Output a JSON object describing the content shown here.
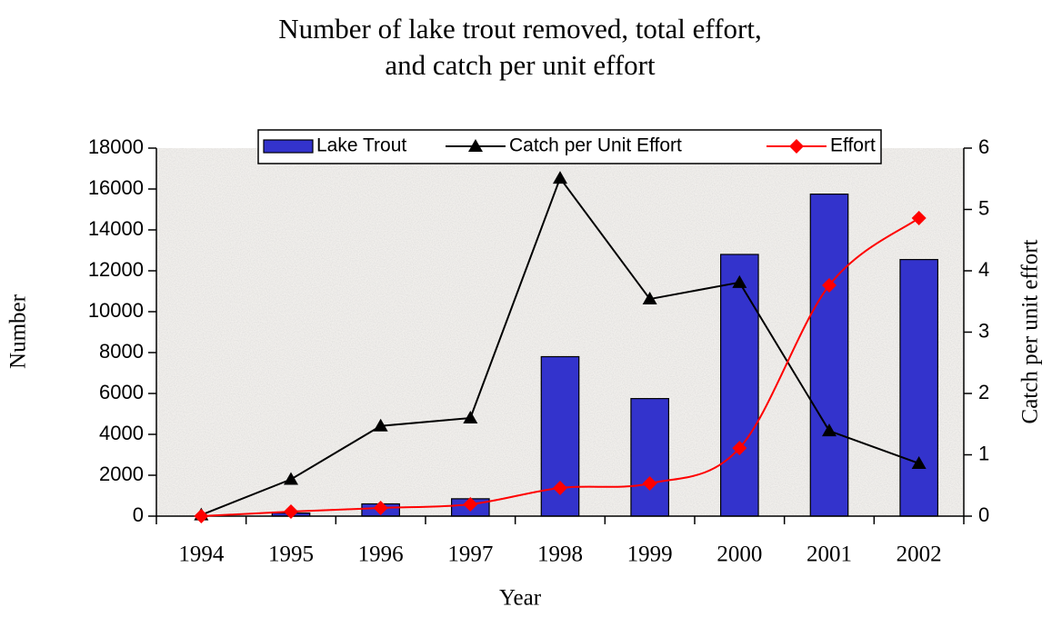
{
  "chart_data": {
    "type": "bar-line",
    "title": [
      "Number of lake trout removed, total effort,",
      "and catch per unit effort"
    ],
    "x_label": "Year",
    "y_label": "Number",
    "y2_label": "Catch per unit effort",
    "categories": [
      "1994",
      "1995",
      "1996",
      "1997",
      "1998",
      "1999",
      "2000",
      "2001",
      "2002"
    ],
    "series": [
      {
        "name": "Lake Trout",
        "type": "bar",
        "color": "#3333cc",
        "values": [
          0,
          150,
          600,
          850,
          7800,
          5750,
          12800,
          15750,
          12550
        ]
      },
      {
        "name": "Catch per Unit Effort",
        "type": "line",
        "marker": "triangle",
        "color": "#000000",
        "axis": "y2",
        "values": [
          0.02,
          0.6,
          1.47,
          1.6,
          5.51,
          3.54,
          3.81,
          1.39,
          0.86
        ]
      },
      {
        "name": "Effort",
        "type": "line",
        "marker": "diamond",
        "color": "#ff0000",
        "smooth": true,
        "values": [
          0,
          220,
          400,
          580,
          1380,
          1600,
          3330,
          11290,
          14580
        ]
      }
    ],
    "ylim": [
      0,
      18000
    ],
    "yticks": [
      0,
      2000,
      4000,
      6000,
      8000,
      10000,
      12000,
      14000,
      16000,
      18000
    ],
    "y2lim": [
      0,
      6
    ],
    "y2ticks": [
      0,
      1,
      2,
      3,
      4,
      5,
      6
    ],
    "legend": "top"
  }
}
